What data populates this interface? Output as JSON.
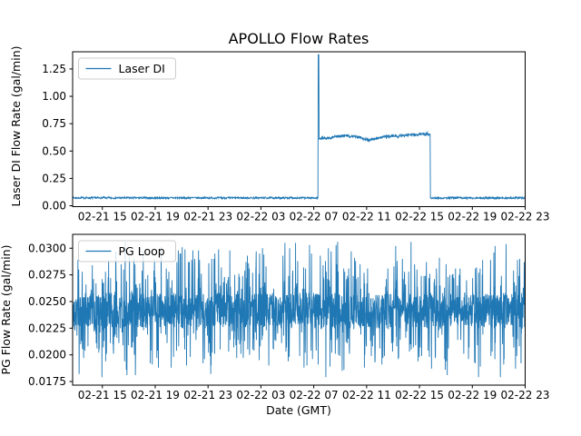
{
  "figure": {
    "background": "#ffffff",
    "accent_color": "#1f77b4",
    "spine_color": "#000000",
    "legend_border_color": "#cccccc"
  },
  "chart_data": [
    {
      "type": "line",
      "title": "APOLLO Flow Rates",
      "ylabel": "Laser DI Flow Rate (gal/min)",
      "legend": {
        "entries": [
          "Laser DI"
        ],
        "position": "upper-left"
      },
      "x_axis": {
        "unit": "hours along shared date axis (GMT)",
        "range_hours": [
          0,
          34.25
        ],
        "ticks": [
          {
            "t": 2.25,
            "label": "02-21 15"
          },
          {
            "t": 6.25,
            "label": "02-21 19"
          },
          {
            "t": 10.25,
            "label": "02-21 23"
          },
          {
            "t": 14.25,
            "label": "02-22 03"
          },
          {
            "t": 18.25,
            "label": "02-22 07"
          },
          {
            "t": 22.25,
            "label": "02-22 11"
          },
          {
            "t": 26.25,
            "label": "02-22 15"
          },
          {
            "t": 30.25,
            "label": "02-22 19"
          },
          {
            "t": 34.25,
            "label": "02-22 23"
          }
        ]
      },
      "y_axis": {
        "range": [
          -0.008,
          1.407
        ],
        "ticks": [
          {
            "v": 0.0,
            "label": "0.00"
          },
          {
            "v": 0.25,
            "label": "0.25"
          },
          {
            "v": 0.5,
            "label": "0.50"
          },
          {
            "v": 0.75,
            "label": "0.75"
          },
          {
            "v": 1.0,
            "label": "1.00"
          },
          {
            "v": 1.25,
            "label": "1.25"
          }
        ]
      },
      "series": [
        {
          "name": "Laser DI",
          "color": "#1f77b4",
          "summary": "Flat baseline ~0.07 gal/min until ~02-22 06:20, instantaneous spike to ~1.38, noisy plateau drifting 0.61 to 0.66 gal/min, step back down to ~0.07 just after 02-22 15.",
          "segments": [
            {
              "kind": "flat",
              "from": 0.0,
              "to": 18.57,
              "value": 0.072,
              "noise": 0.009
            },
            {
              "kind": "spike",
              "from": 18.57,
              "to": 18.64,
              "value": 1.38,
              "noise": 0.0
            },
            {
              "kind": "profile",
              "from": 18.64,
              "to": 27.07,
              "noise": 0.013,
              "points": [
                [
                  18.64,
                  0.618
                ],
                [
                  19.2,
                  0.612
                ],
                [
                  19.9,
                  0.632
                ],
                [
                  20.6,
                  0.64
                ],
                [
                  21.3,
                  0.633
                ],
                [
                  21.9,
                  0.62
                ],
                [
                  22.4,
                  0.602
                ],
                [
                  22.9,
                  0.613
                ],
                [
                  23.5,
                  0.628
                ],
                [
                  24.3,
                  0.638
                ],
                [
                  25.2,
                  0.645
                ],
                [
                  26.2,
                  0.652
                ],
                [
                  27.07,
                  0.655
                ]
              ]
            },
            {
              "kind": "flat",
              "from": 27.07,
              "to": 34.25,
              "value": 0.072,
              "noise": 0.009
            }
          ],
          "sample_count": 1500
        }
      ]
    },
    {
      "type": "line",
      "title": "",
      "ylabel": "PG Flow Rate (gal/min)",
      "xlabel": "Date (GMT)",
      "legend": {
        "entries": [
          "PG Loop"
        ],
        "position": "upper-left"
      },
      "x_axis": {
        "unit": "hours along shared date axis (GMT)",
        "range_hours": [
          0,
          34.25
        ],
        "ticks": [
          {
            "t": 2.25,
            "label": "02-21 15"
          },
          {
            "t": 6.25,
            "label": "02-21 19"
          },
          {
            "t": 10.25,
            "label": "02-21 23"
          },
          {
            "t": 14.25,
            "label": "02-22 03"
          },
          {
            "t": 18.25,
            "label": "02-22 07"
          },
          {
            "t": 22.25,
            "label": "02-22 11"
          },
          {
            "t": 26.25,
            "label": "02-22 15"
          },
          {
            "t": 30.25,
            "label": "02-22 19"
          },
          {
            "t": 34.25,
            "label": "02-22 23"
          }
        ]
      },
      "y_axis": {
        "range": [
          0.01716,
          0.0313
        ],
        "ticks": [
          {
            "v": 0.0175,
            "label": "0.0175"
          },
          {
            "v": 0.02,
            "label": "0.0200"
          },
          {
            "v": 0.0225,
            "label": "0.0225"
          },
          {
            "v": 0.025,
            "label": "0.0250"
          },
          {
            "v": 0.0275,
            "label": "0.0275"
          },
          {
            "v": 0.03,
            "label": "0.0300"
          }
        ]
      },
      "series": [
        {
          "name": "PG Loop",
          "color": "#1f77b4",
          "summary": "Stationary noisy signal the whole span: dense band 0.0225-0.0258 gal/min, frequent one-sample excursions up to ~0.0306 and down to ~0.0179 gal/min, quantized in ~0.0001 steps.",
          "stats": {
            "mean": 0.0241,
            "typical_band": [
              0.0225,
              0.0258
            ],
            "min": 0.0179,
            "max": 0.0306
          },
          "gen": {
            "center": 0.02415,
            "band_halfwidth": 0.00165,
            "up_spike_prob": 0.16,
            "up_spike_max": 0.0052,
            "down_spike_prob": 0.16,
            "down_spike_max": 0.0052,
            "quantum": 0.0001,
            "clamp": [
              0.0179,
              0.0306
            ]
          },
          "sample_count": 2300
        }
      ]
    }
  ]
}
